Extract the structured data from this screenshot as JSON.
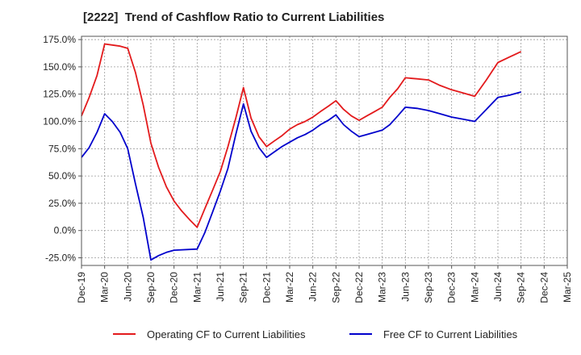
{
  "chart_data": {
    "type": "line",
    "title": "[2222]  Trend of Cashflow Ratio to Current Liabilities",
    "xlabel": "",
    "ylabel": "",
    "categories": [
      "Dec-19",
      "Mar-20",
      "Jun-20",
      "Sep-20",
      "Dec-20",
      "Mar-21",
      "Jun-21",
      "Sep-21",
      "Dec-21",
      "Mar-22",
      "Jun-22",
      "Sep-22",
      "Dec-22",
      "Mar-23",
      "Jun-23",
      "Sep-23",
      "Dec-23",
      "Mar-24",
      "Jun-24",
      "Sep-24",
      "Dec-24",
      "Mar-25"
    ],
    "y_ticks": [
      "-25.0%",
      "0.0%",
      "25.0%",
      "50.0%",
      "75.0%",
      "100.0%",
      "125.0%",
      "150.0%",
      "175.0%"
    ],
    "y_tick_values": [
      -25,
      0,
      25,
      50,
      75,
      100,
      125,
      150,
      175
    ],
    "ylim": [
      -32,
      178
    ],
    "grid": true,
    "legend_position": "bottom",
    "series": [
      {
        "name": "Operating CF to Current Liabilities",
        "color": "#e31a1c",
        "points": [
          [
            0,
            105
          ],
          [
            0.33,
            122
          ],
          [
            0.67,
            142
          ],
          [
            1,
            171
          ],
          [
            1.33,
            170
          ],
          [
            1.67,
            169
          ],
          [
            2,
            167
          ],
          [
            2.33,
            145
          ],
          [
            2.67,
            115
          ],
          [
            3,
            80
          ],
          [
            3.33,
            58
          ],
          [
            3.67,
            40
          ],
          [
            4,
            27
          ],
          [
            4.33,
            18
          ],
          [
            4.67,
            10
          ],
          [
            5,
            3
          ],
          [
            5.33,
            20
          ],
          [
            5.67,
            37
          ],
          [
            6,
            54
          ],
          [
            6.33,
            77
          ],
          [
            6.67,
            103
          ],
          [
            7,
            131
          ],
          [
            7.33,
            103
          ],
          [
            7.67,
            86
          ],
          [
            8,
            77
          ],
          [
            8.33,
            82
          ],
          [
            8.67,
            87
          ],
          [
            9,
            93
          ],
          [
            9.33,
            97
          ],
          [
            9.67,
            100
          ],
          [
            10,
            104
          ],
          [
            10.33,
            109
          ],
          [
            10.67,
            114
          ],
          [
            11,
            119
          ],
          [
            11.33,
            111
          ],
          [
            11.67,
            105
          ],
          [
            12,
            101
          ],
          [
            12.33,
            105
          ],
          [
            12.67,
            109
          ],
          [
            13,
            113
          ],
          [
            13.33,
            122
          ],
          [
            13.67,
            130
          ],
          [
            14,
            140
          ],
          [
            14.5,
            139
          ],
          [
            15,
            138
          ],
          [
            15.5,
            133
          ],
          [
            16,
            129
          ],
          [
            16.5,
            126
          ],
          [
            17,
            123
          ],
          [
            17.5,
            138
          ],
          [
            18,
            154
          ],
          [
            18.5,
            159
          ],
          [
            19,
            164
          ]
        ]
      },
      {
        "name": "Free CF to Current Liabilities",
        "color": "#0000cc",
        "points": [
          [
            0,
            67
          ],
          [
            0.33,
            76
          ],
          [
            0.67,
            90
          ],
          [
            1,
            107
          ],
          [
            1.33,
            100
          ],
          [
            1.67,
            90
          ],
          [
            2,
            75
          ],
          [
            2.33,
            43
          ],
          [
            2.67,
            12
          ],
          [
            3,
            -27
          ],
          [
            3.33,
            -23
          ],
          [
            3.67,
            -20
          ],
          [
            4,
            -18
          ],
          [
            5,
            -17
          ],
          [
            5.33,
            -2
          ],
          [
            5.67,
            17
          ],
          [
            6,
            36
          ],
          [
            6.33,
            57
          ],
          [
            6.67,
            88
          ],
          [
            7,
            116
          ],
          [
            7.33,
            91
          ],
          [
            7.67,
            76
          ],
          [
            8,
            67
          ],
          [
            8.33,
            72
          ],
          [
            8.67,
            77
          ],
          [
            9,
            81
          ],
          [
            9.33,
            85
          ],
          [
            9.67,
            88
          ],
          [
            10,
            92
          ],
          [
            10.33,
            97
          ],
          [
            10.67,
            101
          ],
          [
            11,
            106
          ],
          [
            11.33,
            97
          ],
          [
            11.67,
            91
          ],
          [
            12,
            86
          ],
          [
            12.33,
            88
          ],
          [
            12.67,
            90
          ],
          [
            13,
            92
          ],
          [
            13.33,
            97
          ],
          [
            13.67,
            105
          ],
          [
            14,
            113
          ],
          [
            14.5,
            112
          ],
          [
            15,
            110
          ],
          [
            15.5,
            107
          ],
          [
            16,
            104
          ],
          [
            16.5,
            102
          ],
          [
            17,
            100
          ],
          [
            17.5,
            111
          ],
          [
            18,
            122
          ],
          [
            18.5,
            124
          ],
          [
            19,
            127
          ]
        ]
      }
    ]
  }
}
